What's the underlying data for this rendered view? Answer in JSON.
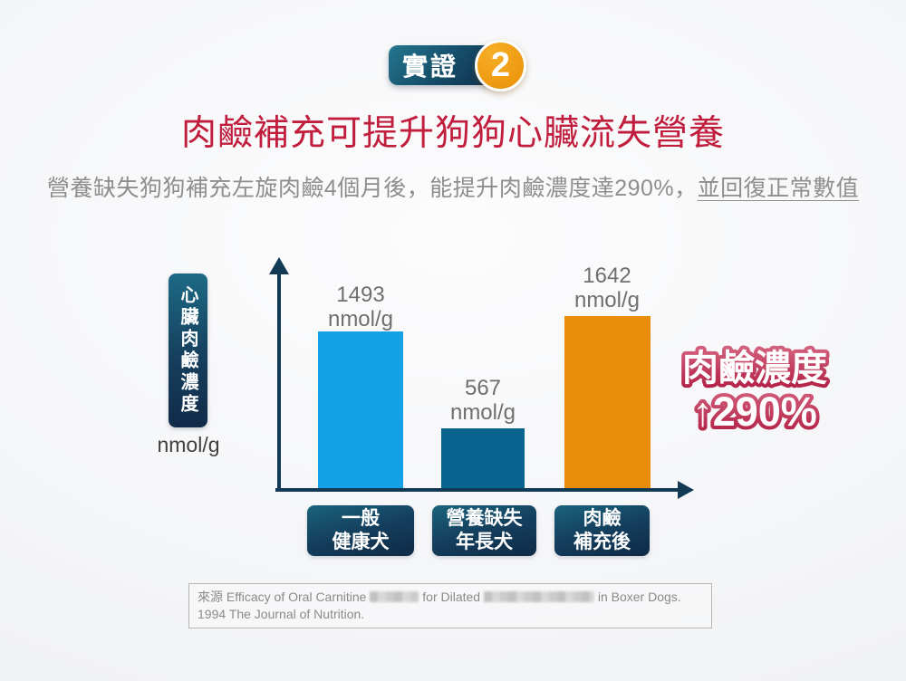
{
  "badge": {
    "label": "實證",
    "number": "2"
  },
  "title": "肉鹼補充可提升狗狗心臟流失營養",
  "subtitle": {
    "main": "營養缺失狗狗補充左旋肉鹼4個月後，能提升肉鹼濃度達290%，",
    "underlined": "並回復正常數值"
  },
  "chart_data": {
    "type": "bar",
    "title": "",
    "ylabel": "心臟肉鹼濃度",
    "ylabel_unit": "nmol/g",
    "categories": [
      "一般健康犬",
      "營養缺失年長犬",
      "肉鹼補充後"
    ],
    "category_lines": [
      [
        "一般",
        "健康犬"
      ],
      [
        "營養缺失",
        "年長犬"
      ],
      [
        "肉鹼",
        "補充後"
      ]
    ],
    "values": [
      1493,
      567,
      1642
    ],
    "value_unit": "nmol/g",
    "bar_colors": [
      "#14a1e6",
      "#08648e",
      "#ea8d0c"
    ],
    "ylim": [
      0,
      1800
    ],
    "grid": false,
    "legend": "none",
    "annotation": {
      "line1": "肉鹼濃度",
      "line2": "↑290%"
    }
  },
  "annotation_color": "#c23a58",
  "source": {
    "cn_label": "來源",
    "seg1": "Efficacy of Oral Carnitine",
    "seg2": "for Dilated",
    "seg3": "in Boxer Dogs. 1994 The Journal of Nutrition."
  },
  "colors": {
    "title_red": "#c11d3d",
    "subtitle_gray": "#8e8e8e",
    "bar_blue": "#14a1e6",
    "bar_teal": "#08648e",
    "bar_orange": "#ea8d0c",
    "navy_box_top": "#1d6a85",
    "navy_box_bottom": "#112b49",
    "axis_navy": "#133a55",
    "badge_circle_orange": "#ee9a10",
    "annotation_pink": "#c23a58"
  }
}
